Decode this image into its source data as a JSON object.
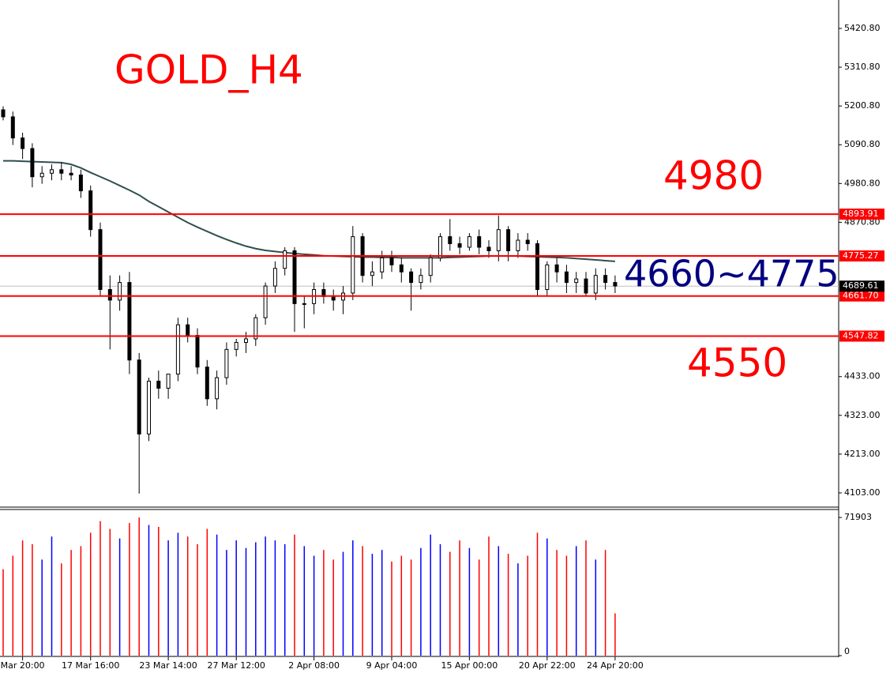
{
  "chart_data": {
    "type": "candlestick",
    "title": "GOLD_H4",
    "categories": [
      null,
      null,
      "Mar 20:00",
      null,
      null,
      null,
      null,
      null,
      null,
      "17 Mar 16:00",
      null,
      null,
      null,
      null,
      null,
      null,
      null,
      "23 Mar 14:00",
      null,
      null,
      null,
      null,
      null,
      null,
      "27 Mar 12:00",
      null,
      null,
      null,
      null,
      null,
      null,
      null,
      "2 Apr 08:00",
      null,
      null,
      null,
      null,
      null,
      null,
      null,
      "9 Apr 04:00",
      null,
      null,
      null,
      null,
      null,
      null,
      null,
      "15 Apr 00:00",
      null,
      null,
      null,
      null,
      null,
      null,
      null,
      "20 Apr 22:00",
      null,
      null,
      null,
      null,
      null,
      null,
      "24 Apr 20:00"
    ],
    "open": [
      5190,
      5170,
      5110,
      5080,
      5000,
      5010,
      5020,
      5010,
      5005,
      4960,
      4850,
      4680,
      4650,
      4700,
      4480,
      4270,
      4420,
      4400,
      4440,
      4580,
      4550,
      4460,
      4370,
      4430,
      4510,
      4530,
      4540,
      4600,
      4690,
      4740,
      4790,
      4640,
      4640,
      4680,
      4660,
      4650,
      4670,
      4830,
      4720,
      4730,
      4770,
      4750,
      4730,
      4700,
      4720,
      4770,
      4830,
      4810,
      4800,
      4830,
      4800,
      4790,
      4850,
      4790,
      4820,
      4810,
      4680,
      4750,
      4730,
      4700,
      4710,
      4670,
      4720,
      4700
    ],
    "high": [
      5200,
      5185,
      5125,
      5095,
      5030,
      5035,
      5040,
      5030,
      5020,
      4975,
      4870,
      4720,
      4720,
      4730,
      4500,
      4430,
      4450,
      4440,
      4600,
      4600,
      4570,
      4480,
      4450,
      4530,
      4540,
      4560,
      4610,
      4700,
      4760,
      4800,
      4800,
      4660,
      4700,
      4700,
      4680,
      4690,
      4860,
      4840,
      4760,
      4790,
      4790,
      4770,
      4740,
      4740,
      4780,
      4840,
      4880,
      4830,
      4840,
      4850,
      4820,
      4890,
      4860,
      4840,
      4840,
      4820,
      4760,
      4770,
      4750,
      4730,
      4730,
      4740,
      4740,
      4720
    ],
    "low": [
      5160,
      5090,
      5050,
      4970,
      4980,
      4990,
      4990,
      4990,
      4940,
      4830,
      4660,
      4510,
      4620,
      4440,
      4101,
      4250,
      4370,
      4370,
      4420,
      4530,
      4440,
      4350,
      4340,
      4410,
      4490,
      4500,
      4520,
      4580,
      4670,
      4720,
      4560,
      4570,
      4610,
      4640,
      4620,
      4610,
      4650,
      4700,
      4690,
      4710,
      4730,
      4700,
      4620,
      4680,
      4700,
      4760,
      4790,
      4780,
      4790,
      4780,
      4770,
      4760,
      4760,
      4770,
      4790,
      4660,
      4660,
      4700,
      4670,
      4670,
      4660,
      4650,
      4680,
      4670
    ],
    "close": [
      5170,
      5110,
      5080,
      5000,
      5010,
      5020,
      5010,
      5005,
      4960,
      4850,
      4680,
      4650,
      4700,
      4480,
      4270,
      4420,
      4400,
      4440,
      4580,
      4550,
      4460,
      4370,
      4430,
      4510,
      4530,
      4540,
      4600,
      4690,
      4740,
      4790,
      4640,
      4640,
      4680,
      4660,
      4650,
      4670,
      4830,
      4720,
      4730,
      4770,
      4750,
      4730,
      4700,
      4720,
      4770,
      4830,
      4810,
      4800,
      4830,
      4800,
      4790,
      4850,
      4790,
      4820,
      4810,
      4680,
      4750,
      4730,
      4700,
      4710,
      4670,
      4720,
      4700,
      4690
    ],
    "candle_color": "#000000",
    "ma": {
      "color": "#2f4f4f",
      "values": [
        5045,
        5045,
        5044,
        5043,
        5042,
        5041,
        5040,
        5035,
        5025,
        5012,
        5000,
        4988,
        4975,
        4962,
        4948,
        4930,
        4915,
        4900,
        4885,
        4870,
        4857,
        4845,
        4833,
        4822,
        4812,
        4803,
        4796,
        4791,
        4788,
        4785,
        4782,
        4780,
        4778,
        4776,
        4775,
        4774,
        4773,
        4772,
        4772,
        4771,
        4771,
        4770,
        4770,
        4770,
        4770,
        4770,
        4771,
        4772,
        4773,
        4774,
        4775,
        4775,
        4775,
        4775,
        4774,
        4773,
        4772,
        4771,
        4770,
        4768,
        4766,
        4764,
        4762,
        4760
      ]
    },
    "ylim": [
      4062.6,
      5501.5
    ],
    "yticks": [
      {
        "value": 5420.8,
        "label": "5420.80"
      },
      {
        "value": 5310.8,
        "label": "5310.80"
      },
      {
        "value": 5200.8,
        "label": "5200.80"
      },
      {
        "value": 5090.8,
        "label": "5090.80"
      },
      {
        "value": 4980.8,
        "label": "4980.80"
      },
      {
        "value": 4870.8,
        "label": "4870.80"
      },
      {
        "value": 4433,
        "label": "4433.00"
      },
      {
        "value": 4323,
        "label": "4323.00"
      },
      {
        "value": 4213,
        "label": "4213.00"
      },
      {
        "value": 4103,
        "label": "4103.00"
      }
    ],
    "levels": [
      {
        "value": 4893.91,
        "label": "4893.91",
        "color": "#ff0000"
      },
      {
        "value": 4775.27,
        "label": "4775.27",
        "color": "#ff0000"
      },
      {
        "value": 4661.7,
        "label": "4661.70",
        "color": "#ff0000"
      },
      {
        "value": 4547.82,
        "label": "4547.82",
        "color": "#ff0000"
      }
    ],
    "current_price": {
      "value": 4689.61,
      "label": "4689.61"
    },
    "annotations": [
      {
        "text": "4980",
        "color": "#ff0000"
      },
      {
        "text": "4660~4775",
        "color": "#000080"
      },
      {
        "text": "4550",
        "color": "#ff0000"
      }
    ],
    "volume": {
      "up_color": "#0000ff",
      "down_color": "#ff0000",
      "ylim": [
        0,
        76060
      ],
      "yticks": [
        0,
        71903
      ],
      "values": [
        45000,
        52000,
        60000,
        58000,
        50000,
        62000,
        48000,
        55000,
        57000,
        64000,
        70000,
        66000,
        61000,
        69000,
        71903,
        68000,
        67000,
        60000,
        64000,
        62000,
        58000,
        66000,
        63000,
        55000,
        60000,
        56000,
        59000,
        62000,
        60000,
        58000,
        63000,
        57000,
        52000,
        55000,
        50000,
        54000,
        60000,
        57000,
        53000,
        55000,
        49000,
        52000,
        50000,
        56000,
        63000,
        58000,
        54000,
        60000,
        56000,
        50000,
        62000,
        57000,
        53000,
        48000,
        52000,
        64000,
        61000,
        55000,
        52000,
        57000,
        60000,
        50000,
        55000,
        22000
      ]
    }
  }
}
